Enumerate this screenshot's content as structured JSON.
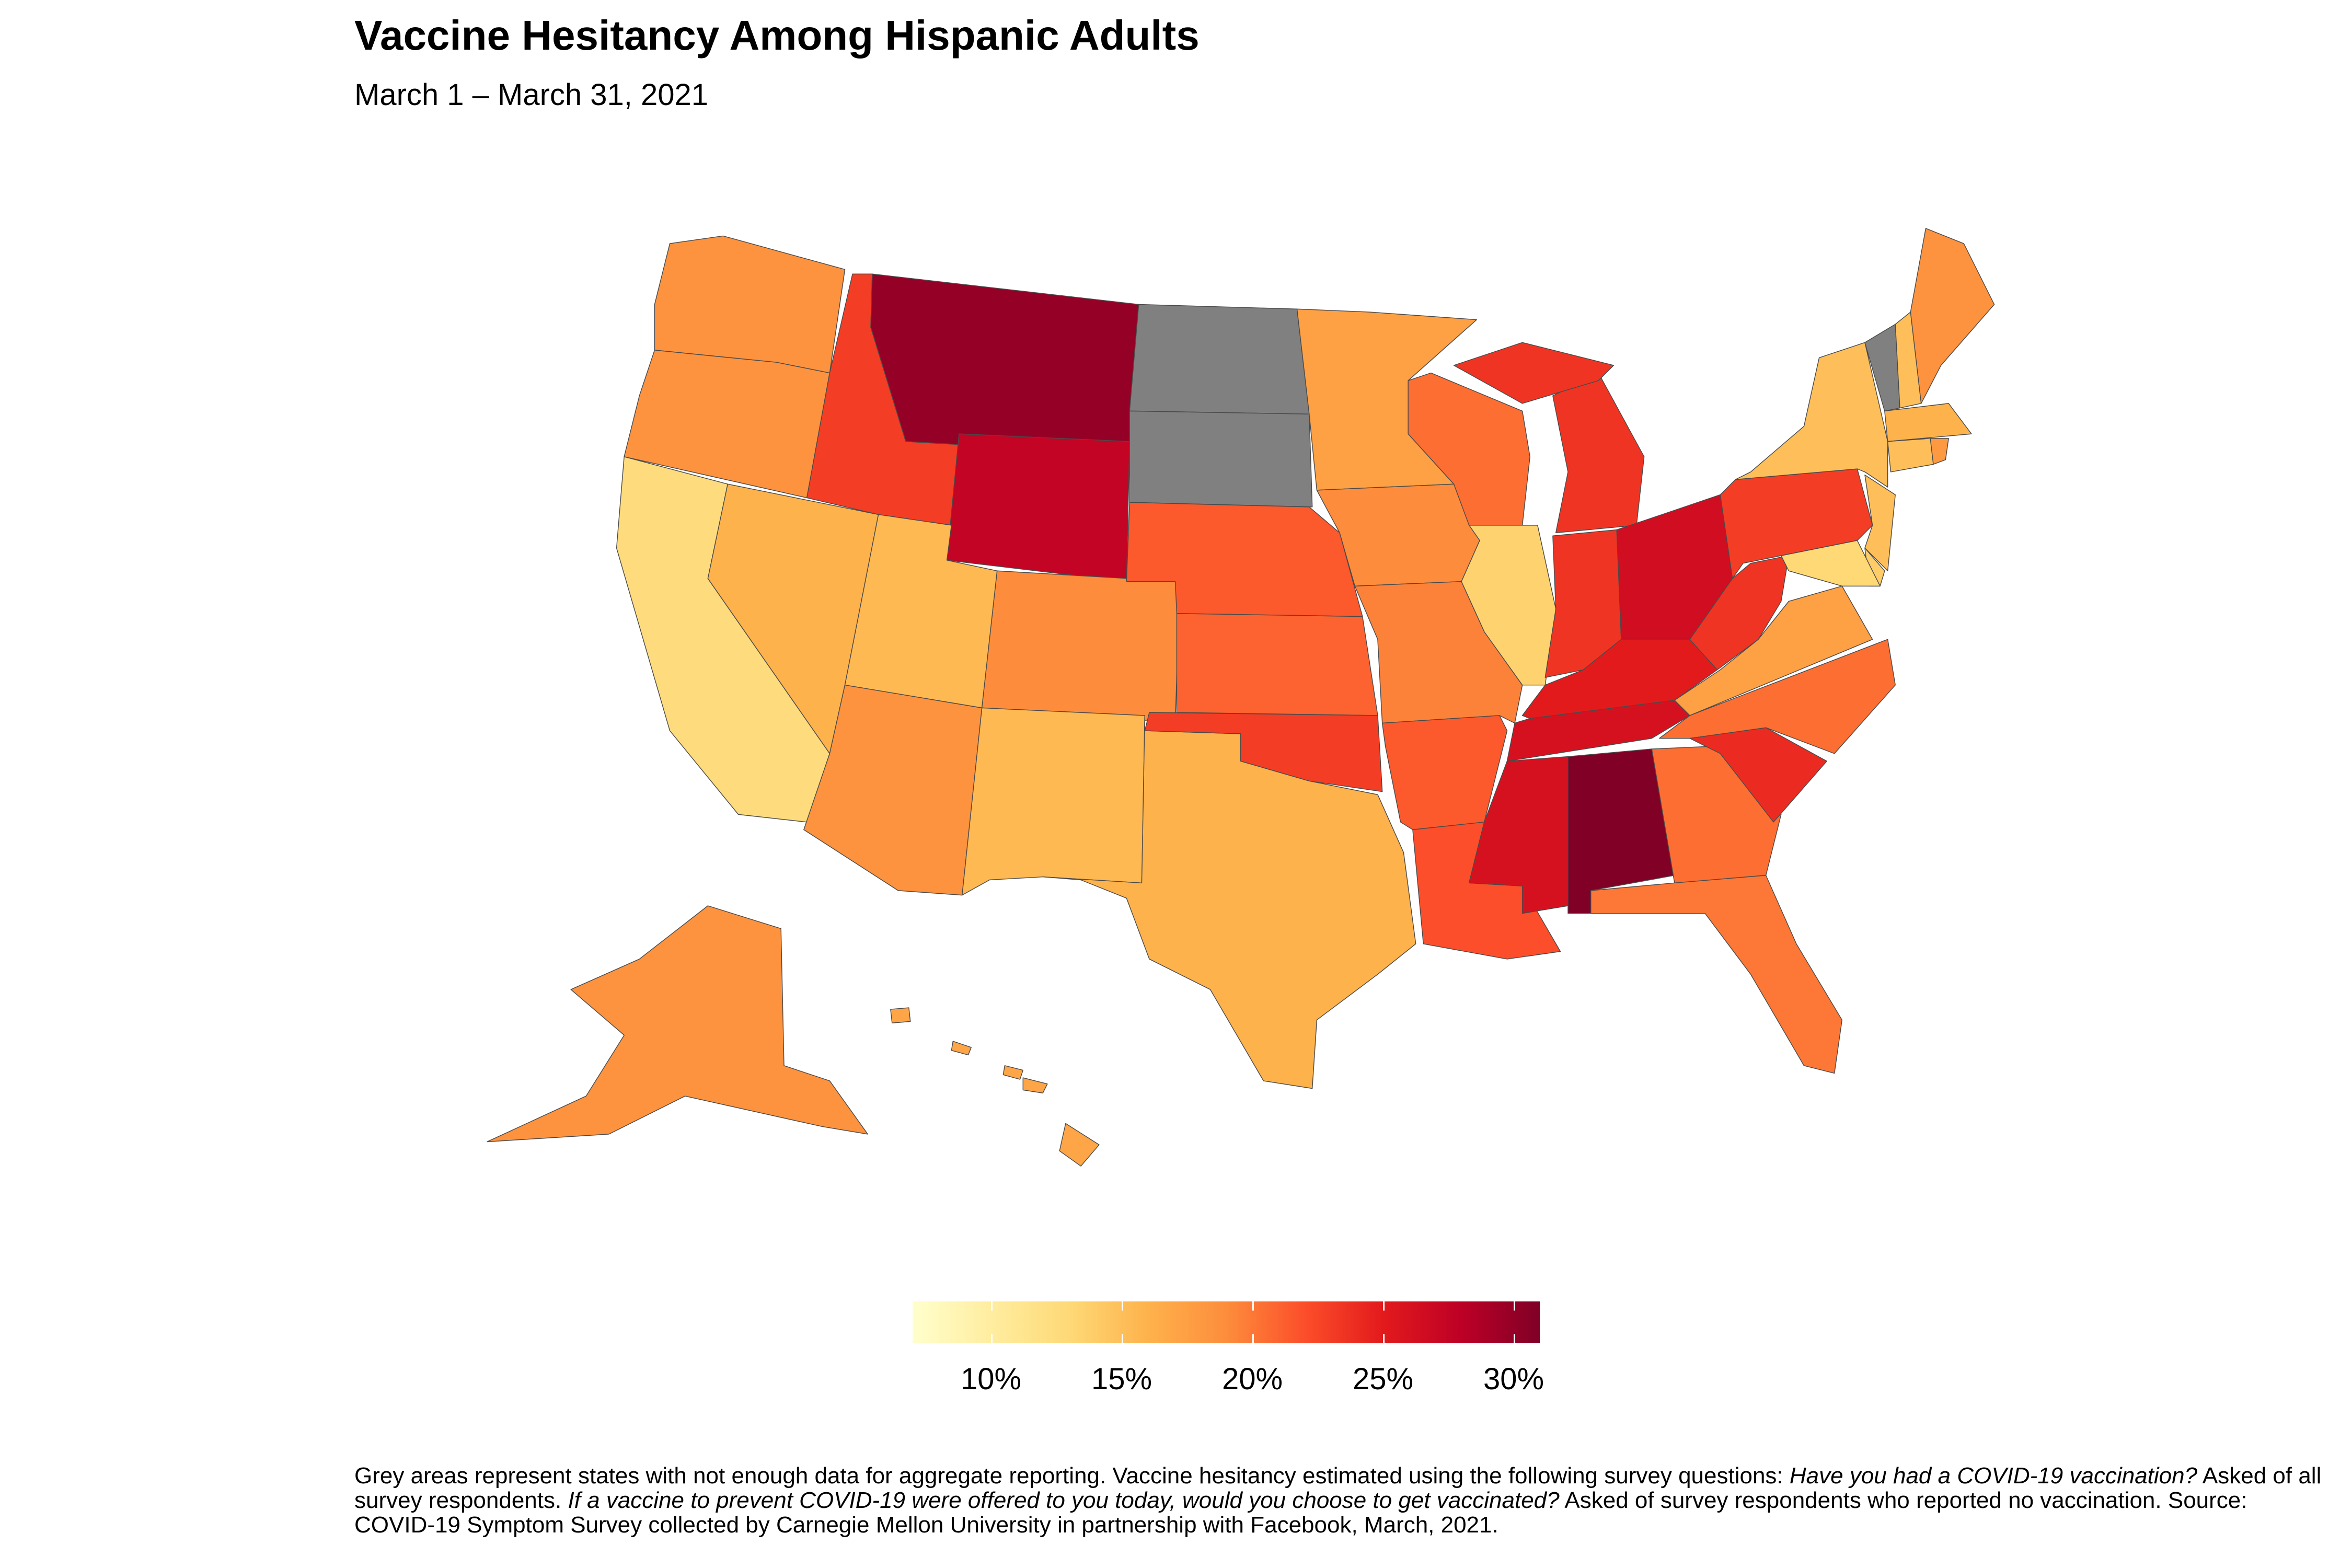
{
  "title": "Vaccine Hesitancy Among Hispanic Adults",
  "subtitle": "March 1 – March 31, 2021",
  "caption": {
    "part1": "Grey areas represent states with not enough data for aggregate reporting. Vaccine hesitancy estimated using the following survey questions: ",
    "q1": "Have you had a COVID-19 vaccination?",
    "part2": " Asked of all survey respondents. ",
    "q2": "If a vaccine to prevent COVID-19 were offered to you today, would you choose to get vaccinated?",
    "part3": " Asked of survey respondents who reported no vaccination. Source: COVID-19 Symptom Survey collected by Carnegie Mellon University in partnership with Facebook, March, 2021."
  },
  "chart_data": {
    "type": "choropleth",
    "title": "Vaccine Hesitancy Among Hispanic Adults",
    "subtitle": "March 1 – March 31, 2021",
    "color_scale": {
      "palette": "YlOrRd",
      "range": [
        7,
        31
      ],
      "stops": [
        "#ffffcc",
        "#ffeda0",
        "#fed976",
        "#feb24c",
        "#fd8d3c",
        "#fc4e2a",
        "#e31a1c",
        "#bd0026",
        "#800026"
      ],
      "missing_color": "#808080"
    },
    "legend": {
      "position": "bottom",
      "ticks": [
        10,
        15,
        20,
        25,
        30
      ],
      "tick_labels": [
        "10%",
        "15%",
        "20%",
        "25%",
        "30%"
      ]
    },
    "states": [
      {
        "state": "WA",
        "value": 18.5
      },
      {
        "state": "OR",
        "value": 18.5
      },
      {
        "state": "CA",
        "value": 12.5
      },
      {
        "state": "NV",
        "value": 16
      },
      {
        "state": "ID",
        "value": 23
      },
      {
        "state": "MT",
        "value": 30
      },
      {
        "state": "WY",
        "value": 27.5
      },
      {
        "state": "UT",
        "value": 15.5
      },
      {
        "state": "CO",
        "value": 19
      },
      {
        "state": "AZ",
        "value": 18.5
      },
      {
        "state": "NM",
        "value": 15.5
      },
      {
        "state": "TX",
        "value": 16
      },
      {
        "state": "ND",
        "value": null
      },
      {
        "state": "SD",
        "value": null
      },
      {
        "state": "NE",
        "value": 21.5
      },
      {
        "state": "KS",
        "value": 21
      },
      {
        "state": "OK",
        "value": 23
      },
      {
        "state": "MN",
        "value": 17.5
      },
      {
        "state": "IA",
        "value": 19
      },
      {
        "state": "MO",
        "value": 19.5
      },
      {
        "state": "AR",
        "value": 21.5
      },
      {
        "state": "LA",
        "value": 22
      },
      {
        "state": "WI",
        "value": 20.5
      },
      {
        "state": "IL",
        "value": 13.5
      },
      {
        "state": "MI",
        "value": 23.5
      },
      {
        "state": "IN",
        "value": 23.5
      },
      {
        "state": "OH",
        "value": 26.5
      },
      {
        "state": "KY",
        "value": 25
      },
      {
        "state": "TN",
        "value": 26
      },
      {
        "state": "MS",
        "value": 26
      },
      {
        "state": "AL",
        "value": 31
      },
      {
        "state": "GA",
        "value": 20.5
      },
      {
        "state": "FL",
        "value": 20
      },
      {
        "state": "SC",
        "value": 24
      },
      {
        "state": "NC",
        "value": 20.5
      },
      {
        "state": "VA",
        "value": 17.5
      },
      {
        "state": "WV",
        "value": 23.5
      },
      {
        "state": "PA",
        "value": 23
      },
      {
        "state": "NY",
        "value": 15
      },
      {
        "state": "NJ",
        "value": 15
      },
      {
        "state": "DE",
        "value": 14
      },
      {
        "state": "MD",
        "value": 13
      },
      {
        "state": "VT",
        "value": null
      },
      {
        "state": "NH",
        "value": 15
      },
      {
        "state": "ME",
        "value": 18.5
      },
      {
        "state": "MA",
        "value": 16
      },
      {
        "state": "CT",
        "value": 15
      },
      {
        "state": "RI",
        "value": 18
      },
      {
        "state": "AK",
        "value": 18.5
      },
      {
        "state": "HI",
        "value": 17
      }
    ]
  }
}
